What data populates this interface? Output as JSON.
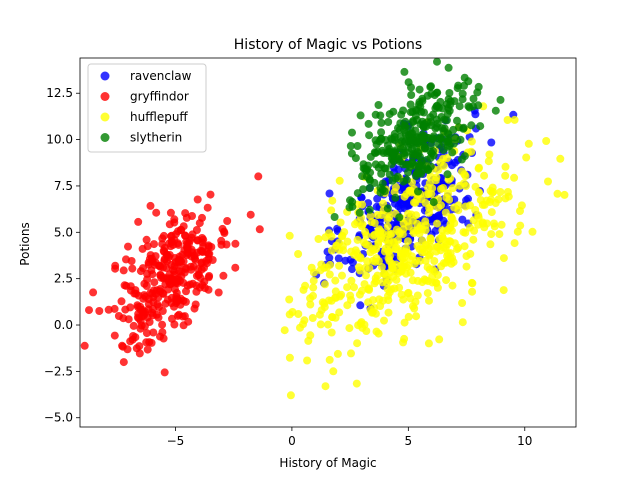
{
  "chart_data": {
    "type": "scatter",
    "title": "History of Magic vs Potions",
    "xlabel": "History of Magic",
    "ylabel": "Potions",
    "xlim": [
      -9.1,
      12.2
    ],
    "ylim": [
      -5.5,
      14.4
    ],
    "xticks": [
      -5,
      0,
      5,
      10
    ],
    "yticks": [
      -5.0,
      -2.5,
      0.0,
      2.5,
      5.0,
      7.5,
      10.0,
      12.5
    ],
    "xtick_labels": [
      "−5",
      "0",
      "5",
      "10"
    ],
    "ytick_labels": [
      "−5.0",
      "−2.5",
      "0.0",
      "2.5",
      "5.0",
      "7.5",
      "10.0",
      "12.5"
    ],
    "grid": false,
    "legend_position": "top-left",
    "series": [
      {
        "name": "ravenclaw",
        "color": "#0000ff",
        "cluster": {
          "cx": 5.0,
          "cy": 6.5,
          "sx": 1.4,
          "sy": 2.0,
          "rho": 0.55,
          "n": 320
        }
      },
      {
        "name": "gryffindor",
        "color": "#ff0000",
        "cluster": {
          "cx": -5.2,
          "cy": 2.7,
          "sx": 1.3,
          "sy": 2.0,
          "rho": 0.65,
          "n": 320
        }
      },
      {
        "name": "hufflepuff",
        "color": "#ffff00",
        "cluster": {
          "cx": 5.0,
          "cy": 4.3,
          "sx": 2.3,
          "sy": 2.6,
          "rho": 0.55,
          "n": 520
        }
      },
      {
        "name": "slytherin",
        "color": "#008000",
        "cluster": {
          "cx": 5.3,
          "cy": 10.0,
          "sx": 1.4,
          "sy": 1.5,
          "rho": 0.55,
          "n": 300
        }
      }
    ]
  }
}
